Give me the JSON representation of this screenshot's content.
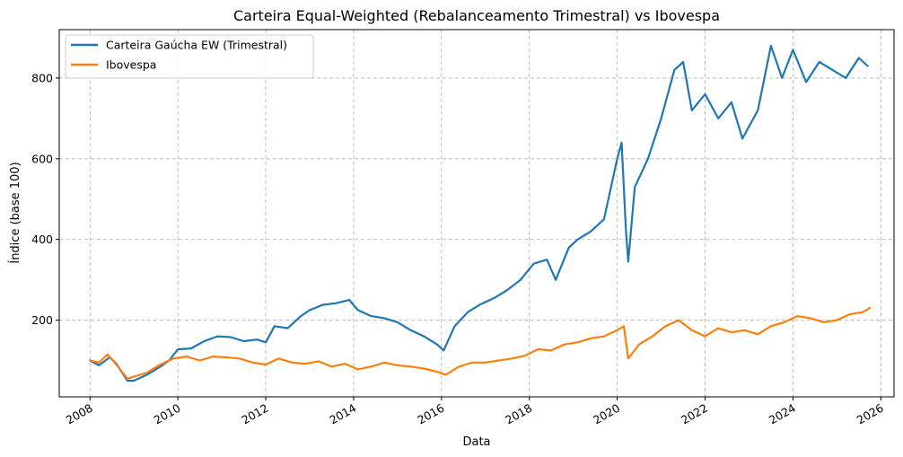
{
  "chart_data": {
    "type": "line",
    "title": "Carteira Equal-Weighted (Rebalanceamento Trimestral) vs Ibovespa",
    "xlabel": "Data",
    "ylabel": "Índice (base 100)",
    "xlim": [
      2007.3,
      2026.3
    ],
    "ylim": [
      10,
      920
    ],
    "xticks": [
      2008,
      2010,
      2012,
      2014,
      2016,
      2018,
      2020,
      2022,
      2024,
      2026
    ],
    "yticks": [
      200,
      400,
      600,
      800
    ],
    "grid": true,
    "legend_position": "top-left",
    "series": [
      {
        "name": "Carteira Gaúcha EW (Trimestral)",
        "color": "#1f77b4",
        "x": [
          2008.0,
          2008.2,
          2008.45,
          2008.6,
          2008.85,
          2009.0,
          2009.3,
          2009.6,
          2009.8,
          2010.0,
          2010.3,
          2010.6,
          2010.9,
          2011.2,
          2011.5,
          2011.8,
          2012.0,
          2012.2,
          2012.5,
          2012.8,
          2013.0,
          2013.3,
          2013.6,
          2013.9,
          2014.1,
          2014.4,
          2014.7,
          2015.0,
          2015.3,
          2015.6,
          2015.9,
          2016.05,
          2016.3,
          2016.6,
          2016.9,
          2017.2,
          2017.5,
          2017.8,
          2018.1,
          2018.4,
          2018.6,
          2018.9,
          2019.1,
          2019.4,
          2019.7,
          2020.0,
          2020.1,
          2020.2,
          2020.25,
          2020.4,
          2020.7,
          2021.0,
          2021.3,
          2021.5,
          2021.7,
          2022.0,
          2022.3,
          2022.6,
          2022.85,
          2023.2,
          2023.5,
          2023.75,
          2024.0,
          2024.3,
          2024.6,
          2024.9,
          2025.2,
          2025.5,
          2025.7
        ],
        "values": [
          100,
          88,
          108,
          92,
          50,
          50,
          65,
          85,
          100,
          128,
          130,
          148,
          160,
          158,
          148,
          152,
          145,
          185,
          180,
          210,
          225,
          238,
          242,
          250,
          225,
          210,
          205,
          195,
          175,
          160,
          140,
          125,
          185,
          220,
          240,
          255,
          275,
          300,
          340,
          350,
          300,
          380,
          400,
          420,
          450,
          600,
          640,
          420,
          345,
          530,
          600,
          700,
          820,
          840,
          720,
          760,
          700,
          740,
          650,
          720,
          880,
          800,
          870,
          790,
          840,
          820,
          800,
          850,
          830
        ]
      },
      {
        "name": "Ibovespa",
        "color": "#ff7f0e",
        "x": [
          2008.0,
          2008.2,
          2008.4,
          2008.6,
          2008.85,
          2009.0,
          2009.3,
          2009.6,
          2009.9,
          2010.2,
          2010.5,
          2010.8,
          2011.1,
          2011.4,
          2011.7,
          2012.0,
          2012.3,
          2012.6,
          2012.9,
          2013.2,
          2013.5,
          2013.8,
          2014.1,
          2014.4,
          2014.7,
          2015.0,
          2015.3,
          2015.6,
          2015.9,
          2016.1,
          2016.4,
          2016.7,
          2017.0,
          2017.3,
          2017.6,
          2017.9,
          2018.2,
          2018.5,
          2018.8,
          2019.1,
          2019.4,
          2019.7,
          2020.0,
          2020.15,
          2020.25,
          2020.5,
          2020.8,
          2021.1,
          2021.4,
          2021.7,
          2022.0,
          2022.3,
          2022.6,
          2022.9,
          2023.2,
          2023.5,
          2023.8,
          2024.1,
          2024.4,
          2024.7,
          2025.0,
          2025.3,
          2025.6,
          2025.75
        ],
        "values": [
          100,
          95,
          115,
          90,
          55,
          60,
          70,
          90,
          105,
          110,
          100,
          110,
          108,
          105,
          95,
          90,
          105,
          95,
          92,
          98,
          85,
          92,
          78,
          85,
          95,
          88,
          85,
          80,
          72,
          65,
          85,
          95,
          95,
          100,
          105,
          112,
          128,
          125,
          140,
          145,
          155,
          160,
          175,
          185,
          105,
          140,
          160,
          185,
          200,
          175,
          160,
          180,
          170,
          175,
          165,
          185,
          195,
          210,
          205,
          195,
          200,
          215,
          220,
          230
        ]
      }
    ]
  }
}
